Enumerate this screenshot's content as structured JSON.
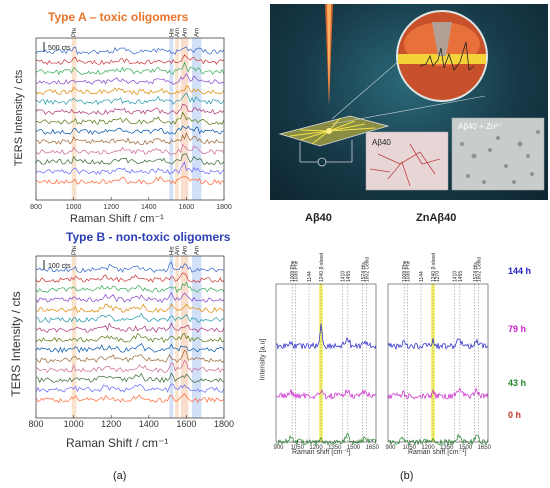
{
  "panel_a": {
    "top": {
      "title": "Type A – toxic oligomers",
      "title_color": "#e8742a",
      "ylabel": "TERS Intensity / cts",
      "xlabel": "Raman Shift / cm⁻¹",
      "scale_bar": "500 cts",
      "band_labels": [
        "Phe",
        "His",
        "Amide II",
        "Aromatic AA",
        "Amide I"
      ],
      "xticks": [
        "800",
        "1000",
        "1200",
        "1400",
        "1600",
        "1800"
      ]
    },
    "bottom": {
      "title": "Type B - non-toxic oligomers",
      "title_color": "#2b3fb0",
      "ylabel": "TERS Intensity / cts",
      "xlabel": "Raman Shift / cm⁻¹",
      "scale_bar": "100 cts",
      "band_labels": [
        "Phe",
        "His",
        "Amide II",
        "Aromatic AA",
        "Amide I"
      ],
      "xticks": [
        "800",
        "1000",
        "1200",
        "1400",
        "1600",
        "1800"
      ]
    },
    "caption": "(a)"
  },
  "panel_b": {
    "illustration": {
      "label_left": "Aβ40",
      "label_right": "Aβ40 + Zn²⁺"
    },
    "plot_left": {
      "title": "Aβ40",
      "ylabel": "Intensity [a.u]",
      "xlabel": "Raman shift [cm⁻¹]",
      "peak_labels": [
        "1009 Phe",
        "1036 Phe",
        "1144",
        "1240 β-sheet",
        "1410",
        "1455",
        "1574 His",
        "1602 Cellia"
      ],
      "xticks": [
        "900",
        "1050",
        "1200",
        "1350",
        "1500",
        "1650"
      ]
    },
    "plot_right": {
      "title": "ZnAβ40",
      "ylabel": "",
      "xlabel": "Raman shift [cm⁻¹]",
      "peak_labels": [
        "1009 Phe",
        "1036 Phe",
        "1144",
        "1240 β-sheet",
        "1270",
        "1410",
        "1455",
        "1574 His",
        "1602 Cellia"
      ],
      "xticks": [
        "900",
        "1050",
        "1200",
        "1350",
        "1500",
        "1650"
      ]
    },
    "time_labels": [
      {
        "text": "144 h",
        "color": "#2222cc"
      },
      {
        "text": "79 h",
        "color": "#cc22cc"
      },
      {
        "text": "43 h",
        "color": "#22882a"
      },
      {
        "text": "0 h",
        "color": "#cc3322"
      }
    ],
    "caption": "(b)"
  },
  "chart_data": [
    {
      "type": "line",
      "title": "Type A – toxic oligomers",
      "xlabel": "Raman Shift / cm⁻¹",
      "ylabel": "TERS Intensity / cts",
      "xlim": [
        800,
        1800
      ],
      "highlight_bands": [
        {
          "label": "Phe",
          "range": [
            990,
            1015
          ]
        },
        {
          "label": "His",
          "range": [
            1510,
            1530
          ]
        },
        {
          "label": "Amide II",
          "range": [
            1540,
            1560
          ]
        },
        {
          "label": "Aromatic AA",
          "range": [
            1570,
            1610
          ]
        },
        {
          "label": "Amide I",
          "range": [
            1630,
            1680
          ]
        }
      ],
      "series_count": 14
    },
    {
      "type": "line",
      "title": "Type B - non-toxic oligomers",
      "xlabel": "Raman Shift / cm⁻¹",
      "ylabel": "TERS Intensity / cts",
      "xlim": [
        800,
        1800
      ],
      "highlight_bands": [
        {
          "label": "Phe",
          "range": [
            990,
            1015
          ]
        },
        {
          "label": "His",
          "range": [
            1510,
            1530
          ]
        },
        {
          "label": "Amide II",
          "range": [
            1540,
            1560
          ]
        },
        {
          "label": "Aromatic AA",
          "range": [
            1570,
            1610
          ]
        },
        {
          "label": "Amide I",
          "range": [
            1630,
            1680
          ]
        }
      ],
      "series_count": 14
    },
    {
      "type": "line",
      "title": "Aβ40",
      "xlabel": "Raman shift [cm⁻¹]",
      "ylabel": "Intensity [a.u]",
      "xlim": [
        880,
        1680
      ],
      "series": [
        {
          "name": "144 h"
        },
        {
          "name": "79 h"
        },
        {
          "name": "43 h"
        },
        {
          "name": "0 h"
        }
      ]
    },
    {
      "type": "line",
      "title": "ZnAβ40",
      "xlabel": "Raman shift [cm⁻¹]",
      "xlim": [
        880,
        1680
      ],
      "series": [
        {
          "name": "144 h"
        },
        {
          "name": "79 h"
        },
        {
          "name": "43 h"
        },
        {
          "name": "0 h"
        }
      ]
    }
  ]
}
